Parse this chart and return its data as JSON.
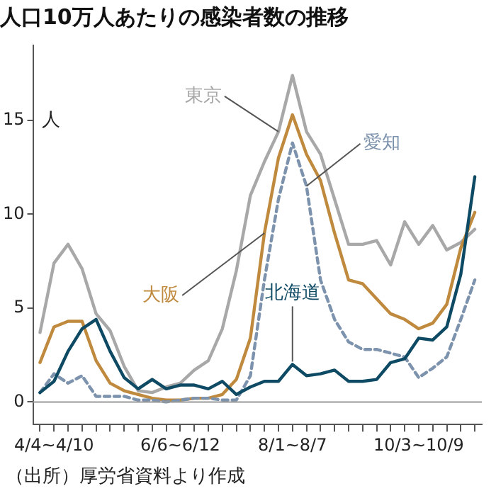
{
  "chart_data": {
    "type": "line",
    "title": "人口10万人あたりの感染者数の推移",
    "ylabel": "人",
    "categories": [
      null,
      "4/4~4/10",
      null,
      null,
      null,
      null,
      null,
      null,
      null,
      null,
      "6/6~6/12",
      null,
      null,
      null,
      null,
      null,
      null,
      null,
      "8/1~8/7",
      null,
      null,
      null,
      null,
      null,
      null,
      null,
      null,
      "10/3~10/9",
      null,
      null,
      null,
      null
    ],
    "series": [
      {
        "name": "東京",
        "color": "#a8a8a8",
        "line_style": "solid",
        "values": [
          3.7,
          7.4,
          8.4,
          7.1,
          4.7,
          3.8,
          1.9,
          0.6,
          0.5,
          0.8,
          1.0,
          1.7,
          2.2,
          3.9,
          7.0,
          11.0,
          12.8,
          14.4,
          17.4,
          14.4,
          13.2,
          10.8,
          8.4,
          8.4,
          8.6,
          7.3,
          9.6,
          8.4,
          9.4,
          8.1,
          8.5,
          9.2
        ]
      },
      {
        "name": "大阪",
        "color": "#c08a3e",
        "line_style": "solid",
        "values": [
          2.1,
          4.0,
          4.3,
          4.3,
          2.2,
          1.0,
          0.6,
          0.4,
          0.2,
          0.1,
          0.1,
          0.2,
          0.2,
          0.4,
          1.2,
          3.4,
          9.0,
          13.0,
          15.3,
          13.2,
          11.8,
          9.0,
          6.5,
          6.3,
          5.5,
          4.7,
          4.4,
          3.9,
          4.2,
          5.2,
          8.2,
          10.1
        ]
      },
      {
        "name": "愛知",
        "color": "#7d93ad",
        "line_style": "dashed",
        "values": [
          0.5,
          1.5,
          1.0,
          1.4,
          0.3,
          0.3,
          0.3,
          0.1,
          0.1,
          0.0,
          0.1,
          0.2,
          0.2,
          0.1,
          0.1,
          1.4,
          6.5,
          10.8,
          13.8,
          11.5,
          6.5,
          4.4,
          3.2,
          2.8,
          2.8,
          2.6,
          2.4,
          1.3,
          1.8,
          2.4,
          4.4,
          6.5
        ]
      },
      {
        "name": "北海道",
        "color": "#0e4a64",
        "line_style": "solid",
        "values": [
          0.5,
          1.1,
          2.7,
          3.9,
          4.4,
          2.7,
          1.3,
          0.7,
          1.2,
          0.7,
          0.9,
          0.9,
          0.7,
          1.1,
          0.4,
          0.8,
          1.1,
          1.1,
          2.0,
          1.4,
          1.5,
          1.7,
          1.1,
          1.1,
          1.2,
          2.1,
          2.3,
          3.4,
          3.3,
          4.0,
          6.8,
          12.0
        ]
      }
    ],
    "ylim": [
      -1.2,
      19
    ],
    "yticks": [
      0,
      5,
      10,
      15
    ],
    "ref_lines": [
      {
        "axis": "y",
        "value": 0,
        "color": "#999999"
      }
    ],
    "marker": "none",
    "legend": false,
    "grid": false,
    "annotations": [
      "（出所）厚労省資料より作成"
    ]
  }
}
